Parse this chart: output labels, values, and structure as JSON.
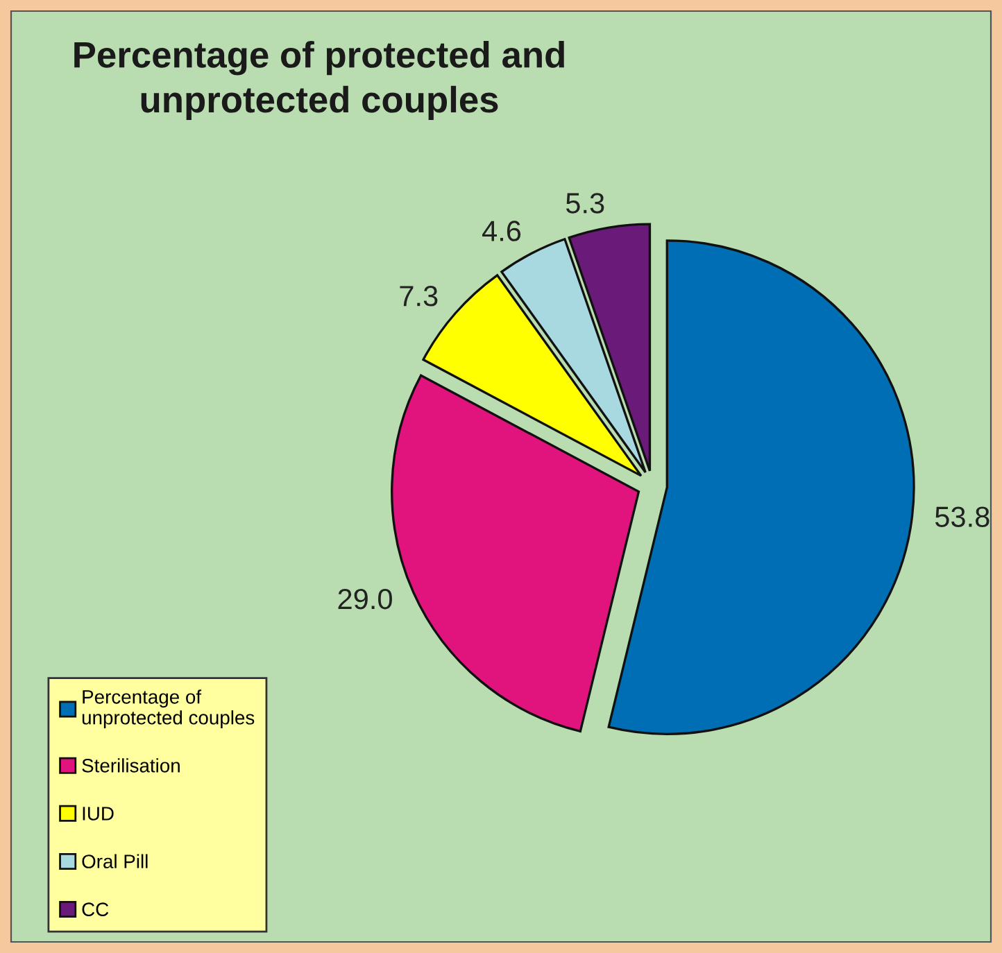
{
  "chart_data": {
    "type": "pie",
    "title": "Percentage of protected and\nunprotected couples",
    "categories": [
      "Percentage of\nunprotected couples",
      "Sterilisation",
      "IUD",
      "Oral Pill",
      "CC"
    ],
    "values": [
      53.8,
      29.0,
      7.3,
      4.6,
      5.3
    ],
    "colors": [
      "#006eb4",
      "#e0147c",
      "#ffff00",
      "#a8d8e0",
      "#6a1a78"
    ],
    "value_labels": [
      "53.8",
      "29.0",
      "7.3",
      "4.6",
      "5.3"
    ],
    "legend": "bottom left"
  }
}
